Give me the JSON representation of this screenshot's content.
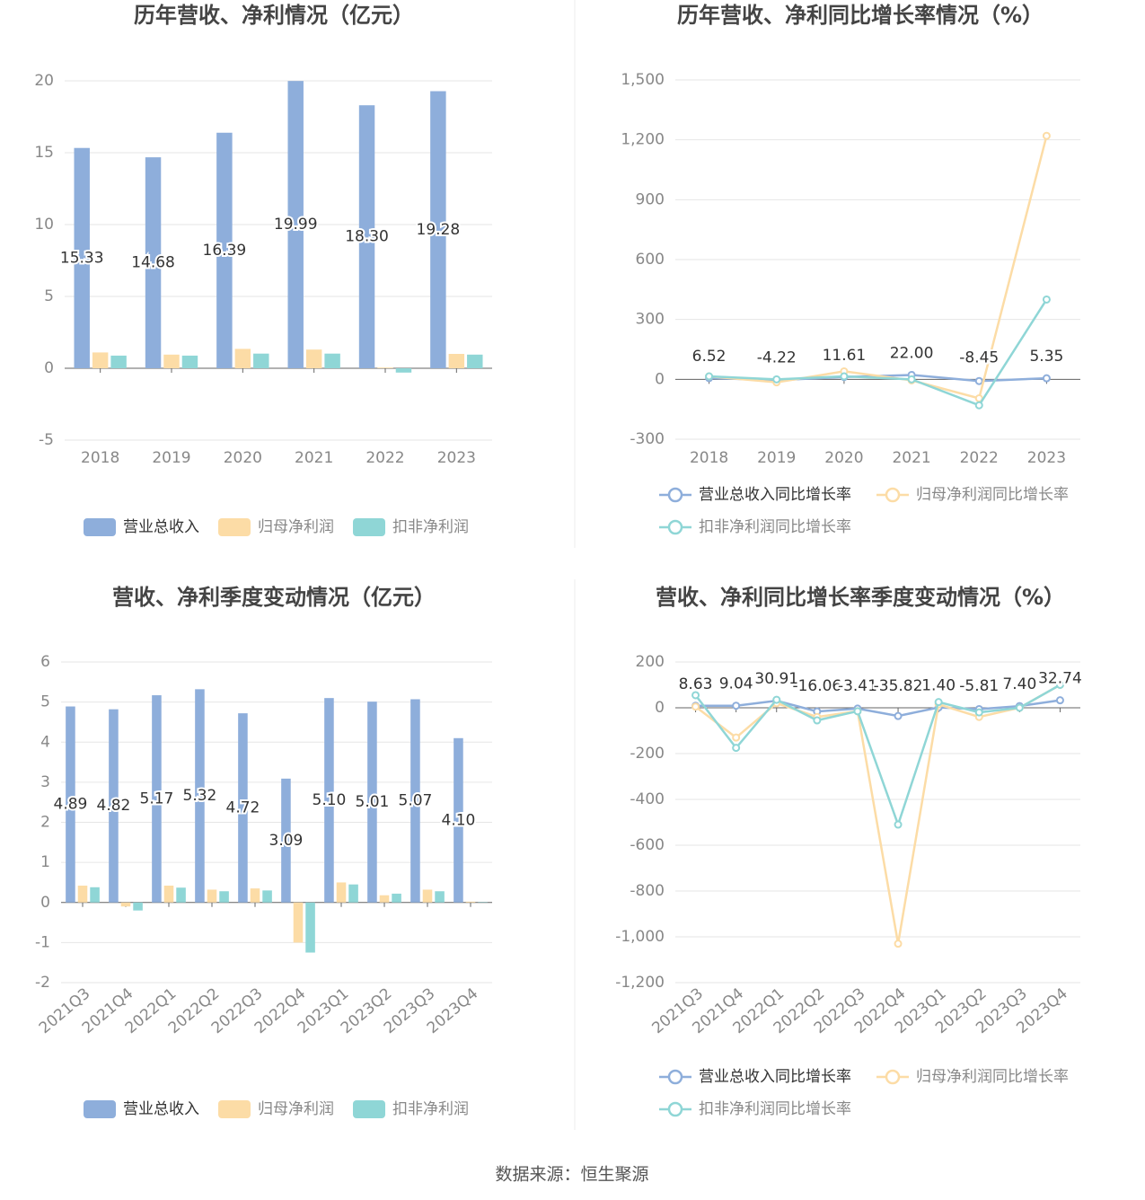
{
  "chart_data": [
    {
      "type": "bar",
      "title": "历年营收、净利情况（亿元）",
      "categories": [
        "2018",
        "2019",
        "2020",
        "2021",
        "2022",
        "2023"
      ],
      "series": [
        {
          "name": "营业总收入",
          "color": "#8eaedb",
          "values": [
            15.33,
            14.68,
            16.39,
            19.99,
            18.3,
            19.28
          ],
          "value_labels": [
            "15.33",
            "14.68",
            "16.39",
            "19.99",
            "18.30",
            "19.28"
          ]
        },
        {
          "name": "归母净利润",
          "color": "#fcdca6",
          "values": [
            1.1,
            0.95,
            1.35,
            1.3,
            0.05,
            1.0
          ]
        },
        {
          "name": "扣非净利润",
          "color": "#8fd6d6",
          "values": [
            0.88,
            0.88,
            1.02,
            1.02,
            -0.3,
            0.95
          ]
        }
      ],
      "ylim": [
        -5,
        20
      ],
      "yticks": [
        -5,
        0,
        5,
        10,
        15,
        20
      ],
      "grid": true,
      "legend": "bottom"
    },
    {
      "type": "line",
      "title": "历年营收、净利同比增长率情况（%）",
      "categories": [
        "2018",
        "2019",
        "2020",
        "2021",
        "2022",
        "2023"
      ],
      "series": [
        {
          "name": "营业总收入同比增长率",
          "color": "#8eaedb",
          "values": [
            6.52,
            -4.22,
            11.61,
            22.0,
            -8.45,
            5.35
          ],
          "value_labels": [
            "6.52",
            "-4.22",
            "11.61",
            "22.00",
            "-8.45",
            "5.35"
          ]
        },
        {
          "name": "归母净利润同比增长率",
          "color": "#fcdca6",
          "values": [
            15,
            -15,
            40,
            -5,
            -95,
            1220
          ]
        },
        {
          "name": "扣非净利润同比增长率",
          "color": "#8fd6d6",
          "values": [
            15,
            0,
            15,
            0,
            -130,
            400
          ]
        }
      ],
      "ylim": [
        -300,
        1500
      ],
      "yticks": [
        -300,
        0,
        300,
        600,
        900,
        {
          "value": 1200,
          "label": "1,200"
        },
        {
          "value": 1500,
          "label": "1,500"
        }
      ],
      "grid": true,
      "legend": "bottom"
    },
    {
      "type": "bar",
      "title": "营收、净利季度变动情况（亿元）",
      "categories": [
        "2021Q3",
        "2021Q4",
        "2022Q1",
        "2022Q2",
        "2022Q3",
        "2022Q4",
        "2023Q1",
        "2023Q2",
        "2023Q3",
        "2023Q4"
      ],
      "series": [
        {
          "name": "营业总收入",
          "color": "#8eaedb",
          "values": [
            4.89,
            4.82,
            5.17,
            5.32,
            4.72,
            3.09,
            5.1,
            5.01,
            5.07,
            4.1
          ],
          "value_labels": [
            "4.89",
            "4.82",
            "5.17",
            "5.32",
            "4.72",
            "3.09",
            "5.10",
            "5.01",
            "5.07",
            "4.10"
          ]
        },
        {
          "name": "归母净利润",
          "color": "#fcdca6",
          "values": [
            0.42,
            -0.1,
            0.42,
            0.32,
            0.35,
            -1.0,
            0.5,
            0.18,
            0.32,
            0.02
          ]
        },
        {
          "name": "扣非净利润",
          "color": "#8fd6d6",
          "values": [
            0.38,
            -0.2,
            0.37,
            0.28,
            0.3,
            -1.25,
            0.45,
            0.22,
            0.28,
            0.01
          ]
        }
      ],
      "ylim": [
        -2,
        6
      ],
      "yticks": [
        -2,
        -1,
        0,
        1,
        2,
        3,
        4,
        5,
        6
      ],
      "grid": true,
      "legend": "bottom"
    },
    {
      "type": "line",
      "title": "营收、净利同比增长率季度变动情况（%）",
      "categories": [
        "2021Q3",
        "2021Q4",
        "2022Q1",
        "2022Q2",
        "2022Q3",
        "2022Q4",
        "2023Q1",
        "2023Q2",
        "2023Q3",
        "2023Q4"
      ],
      "series": [
        {
          "name": "营业总收入同比增长率",
          "color": "#8eaedb",
          "values": [
            8.63,
            9.04,
            30.91,
            -16.06,
            -3.41,
            -35.82,
            1.4,
            -5.81,
            7.4,
            32.74
          ],
          "value_labels": [
            "8.63",
            "9.04",
            "30.91",
            "-16.06",
            "-3.41",
            "-35.82",
            "1.40",
            "-5.81",
            "7.40",
            "32.74"
          ]
        },
        {
          "name": "归母净利润同比增长率",
          "color": "#fcdca6",
          "values": [
            5,
            -130,
            20,
            -40,
            -15,
            -1030,
            15,
            -40,
            0,
            100
          ]
        },
        {
          "name": "扣非净利润同比增长率",
          "color": "#8fd6d6",
          "values": [
            55,
            -175,
            35,
            -55,
            -15,
            -510,
            25,
            -20,
            0,
            100
          ]
        }
      ],
      "ylim": [
        -1200,
        200
      ],
      "yticks": [
        {
          "value": -1200,
          "label": "-1,200"
        },
        {
          "value": -1000,
          "label": "-1,000"
        },
        -800,
        -600,
        -400,
        -200,
        0,
        200
      ],
      "grid": true,
      "legend": "bottom"
    }
  ],
  "source": "数据来源：恒生聚源"
}
